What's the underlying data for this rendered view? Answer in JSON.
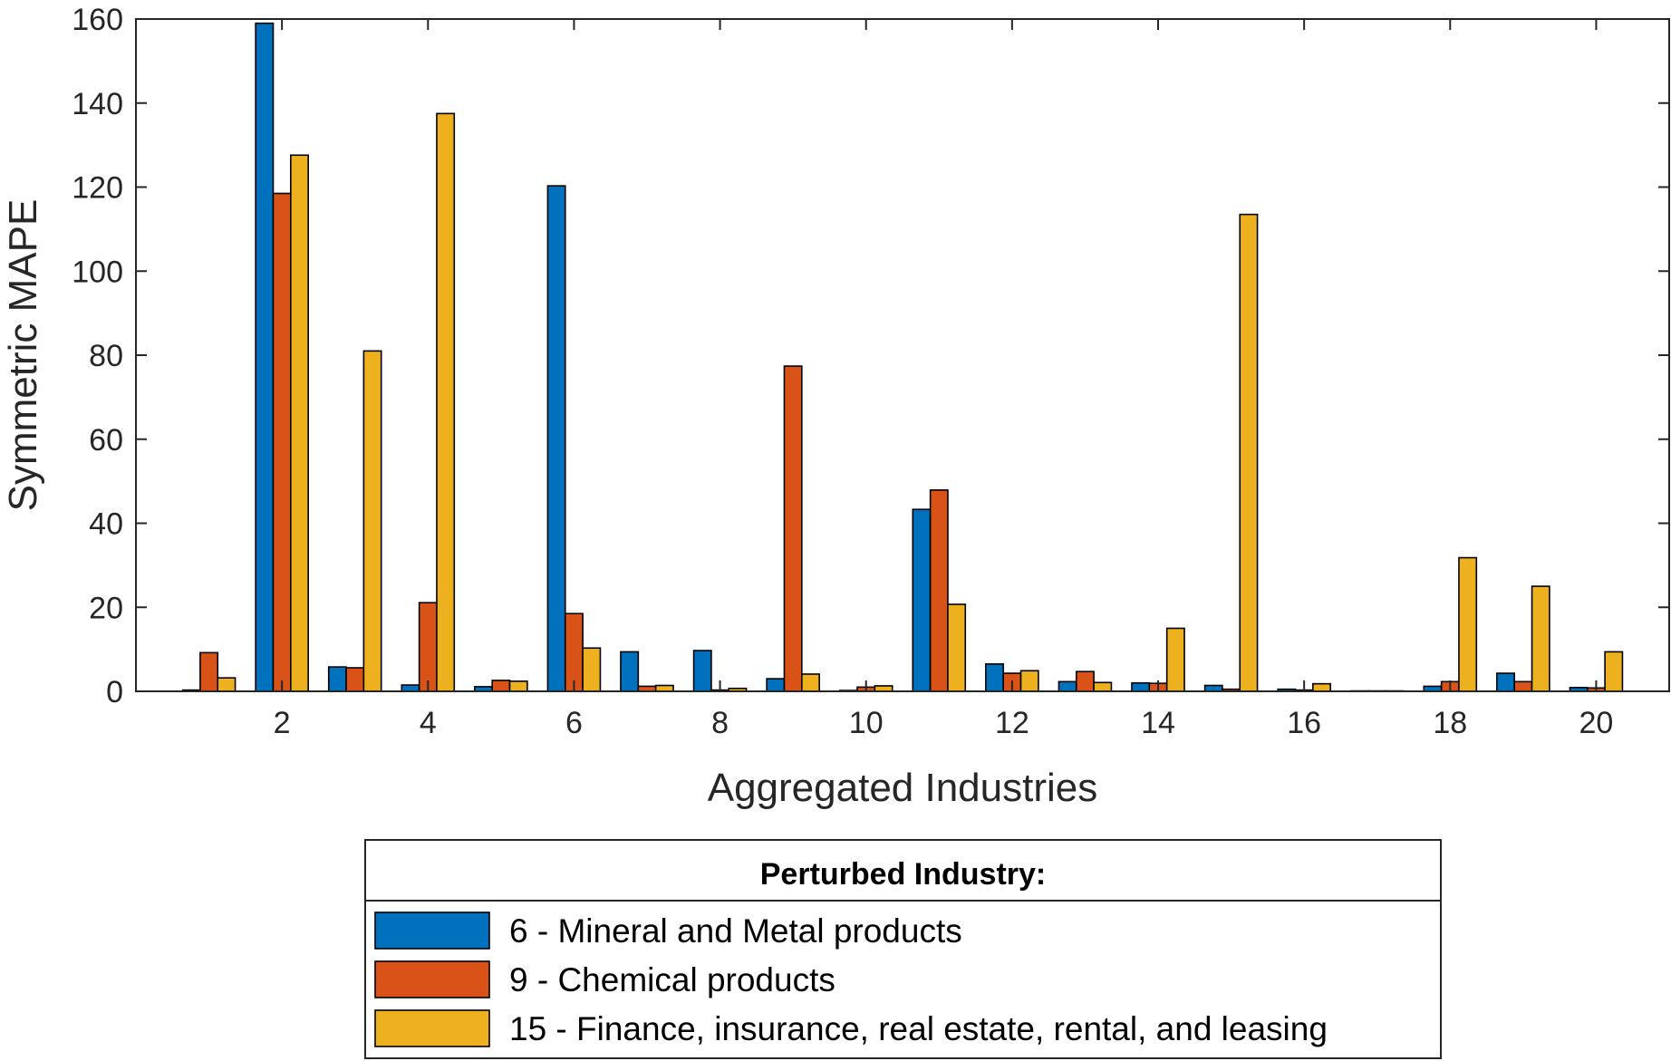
{
  "chart_data": {
    "type": "bar",
    "xlabel": "Aggregated Industries",
    "ylabel": "Symmetric MAPE",
    "ylim": [
      0,
      160
    ],
    "yticks": [
      0,
      20,
      40,
      60,
      80,
      100,
      120,
      140,
      160
    ],
    "xlim": [
      0,
      21
    ],
    "xticks": [
      2,
      4,
      6,
      8,
      10,
      12,
      14,
      16,
      18,
      20
    ],
    "categories": [
      1,
      2,
      3,
      4,
      5,
      6,
      7,
      8,
      9,
      10,
      11,
      12,
      13,
      14,
      15,
      16,
      17,
      18,
      19,
      20
    ],
    "grid": false,
    "legend": {
      "title": "Perturbed Industry:",
      "placement": "bottom-outside"
    },
    "series": [
      {
        "name": "6 - Mineral and Metal products",
        "color": "#0072BD",
        "values": [
          0.3,
          159,
          5.8,
          1.5,
          1.1,
          120.3,
          9.4,
          9.7,
          3.0,
          0.2,
          43.3,
          6.5,
          2.3,
          2.0,
          1.4,
          0.5,
          0.1,
          1.2,
          4.3,
          0.9
        ]
      },
      {
        "name": "9 - Chemical products",
        "color": "#D95319",
        "values": [
          9.2,
          118.5,
          5.6,
          21.1,
          2.6,
          18.5,
          1.2,
          0.3,
          77.4,
          1.0,
          47.9,
          4.3,
          4.7,
          1.9,
          0.5,
          0.3,
          0.1,
          2.3,
          2.3,
          0.8
        ]
      },
      {
        "name": "15 - Finance, insurance, real estate, rental, and leasing",
        "color": "#EDB120",
        "values": [
          3.2,
          127.6,
          81.0,
          137.5,
          2.4,
          10.3,
          1.4,
          0.7,
          4.1,
          1.3,
          20.7,
          4.9,
          2.1,
          15.0,
          113.5,
          1.8,
          0.1,
          31.8,
          25.0,
          9.4
        ]
      }
    ]
  }
}
